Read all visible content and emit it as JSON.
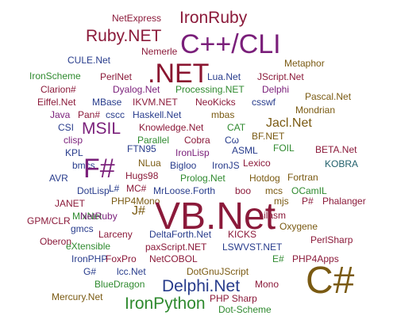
{
  "colors": {
    "purple": "#7a1f7a",
    "maroon": "#8b1a3a",
    "navy": "#283c8c",
    "olive": "#7a5a12",
    "green": "#2f8a2f",
    "teal": "#1f5f6a",
    "crimson": "#8a1530"
  },
  "words": [
    {
      "text": "NetExpress",
      "weight": 2,
      "color": "maroon"
    },
    {
      "text": "IronRuby",
      "weight": 4,
      "color": "maroon"
    },
    {
      "text": "Ruby.NET",
      "weight": 4,
      "color": "maroon"
    },
    {
      "text": "C++/CLI",
      "weight": 6,
      "color": "purple"
    },
    {
      "text": "Nemerle",
      "weight": 2,
      "color": "maroon"
    },
    {
      "text": "CULE.Net",
      "weight": 2,
      "color": "navy"
    },
    {
      "text": ".NET",
      "weight": 6,
      "color": "crimson"
    },
    {
      "text": "Metaphor",
      "weight": 2,
      "color": "olive"
    },
    {
      "text": "IronScheme",
      "weight": 2,
      "color": "green"
    },
    {
      "text": "PerlNet",
      "weight": 2,
      "color": "maroon"
    },
    {
      "text": "Lua.Net",
      "weight": 2,
      "color": "navy"
    },
    {
      "text": "JScript.Net",
      "weight": 2,
      "color": "maroon"
    },
    {
      "text": "Clarion#",
      "weight": 2,
      "color": "maroon"
    },
    {
      "text": "Dyalog.Net",
      "weight": 2,
      "color": "purple"
    },
    {
      "text": "Processing.NET",
      "weight": 2,
      "color": "green"
    },
    {
      "text": "Delphi",
      "weight": 2,
      "color": "purple"
    },
    {
      "text": "Pascal.Net",
      "weight": 2,
      "color": "olive"
    },
    {
      "text": "Eiffel.Net",
      "weight": 2,
      "color": "maroon"
    },
    {
      "text": "MBase",
      "weight": 2,
      "color": "navy"
    },
    {
      "text": "IKVM.NET",
      "weight": 2,
      "color": "maroon"
    },
    {
      "text": "NeoKicks",
      "weight": 2,
      "color": "maroon"
    },
    {
      "text": "csswf",
      "weight": 2,
      "color": "navy"
    },
    {
      "text": "Mondrian",
      "weight": 2,
      "color": "olive"
    },
    {
      "text": "Java",
      "weight": 2,
      "color": "purple"
    },
    {
      "text": "Pan#",
      "weight": 2,
      "color": "maroon"
    },
    {
      "text": "cscc",
      "weight": 2,
      "color": "navy"
    },
    {
      "text": "Haskell.Net",
      "weight": 2,
      "color": "navy"
    },
    {
      "text": "mbas",
      "weight": 2,
      "color": "olive"
    },
    {
      "text": "CSI",
      "weight": 2,
      "color": "navy"
    },
    {
      "text": "MSIL",
      "weight": 4,
      "color": "purple"
    },
    {
      "text": "Knowledge.Net",
      "weight": 2,
      "color": "maroon"
    },
    {
      "text": "CAT",
      "weight": 2,
      "color": "green"
    },
    {
      "text": "Jacl.Net",
      "weight": 3,
      "color": "olive"
    },
    {
      "text": "clisp",
      "weight": 2,
      "color": "purple"
    },
    {
      "text": "Parallel",
      "weight": 2,
      "color": "green"
    },
    {
      "text": "Cobra",
      "weight": 2,
      "color": "maroon"
    },
    {
      "text": "Cω",
      "weight": 2,
      "color": "navy"
    },
    {
      "text": "BF.NET",
      "weight": 2,
      "color": "olive"
    },
    {
      "text": "KPL",
      "weight": 2,
      "color": "navy"
    },
    {
      "text": "FTN95",
      "weight": 2,
      "color": "navy"
    },
    {
      "text": "IronLisp",
      "weight": 2,
      "color": "purple"
    },
    {
      "text": "ASML",
      "weight": 2,
      "color": "navy"
    },
    {
      "text": "FOIL",
      "weight": 2,
      "color": "green"
    },
    {
      "text": "BETA.Net",
      "weight": 2,
      "color": "maroon"
    },
    {
      "text": "bmcs",
      "weight": 2,
      "color": "navy"
    },
    {
      "text": "F#",
      "weight": 5,
      "color": "purple"
    },
    {
      "text": "NLua",
      "weight": 2,
      "color": "olive"
    },
    {
      "text": "Bigloo",
      "weight": 2,
      "color": "navy"
    },
    {
      "text": "IronJS",
      "weight": 2,
      "color": "navy"
    },
    {
      "text": "Lexico",
      "weight": 2,
      "color": "maroon"
    },
    {
      "text": "KOBRA",
      "weight": 2,
      "color": "teal"
    },
    {
      "text": "AVR",
      "weight": 2,
      "color": "navy"
    },
    {
      "text": "Hugs98",
      "weight": 2,
      "color": "maroon"
    },
    {
      "text": "Prolog.Net",
      "weight": 2,
      "color": "green"
    },
    {
      "text": "Hotdog",
      "weight": 2,
      "color": "olive"
    },
    {
      "text": "Fortran",
      "weight": 2,
      "color": "olive"
    },
    {
      "text": "DotLisp",
      "weight": 2,
      "color": "navy"
    },
    {
      "text": "L#",
      "weight": 2,
      "color": "navy"
    },
    {
      "text": "MC#",
      "weight": 2,
      "color": "maroon"
    },
    {
      "text": "MrLoose.Forth",
      "weight": 2,
      "color": "navy"
    },
    {
      "text": "boo",
      "weight": 2,
      "color": "maroon"
    },
    {
      "text": "mcs",
      "weight": 2,
      "color": "olive"
    },
    {
      "text": "OCamIL",
      "weight": 2,
      "color": "green"
    },
    {
      "text": "JANET",
      "weight": 2,
      "color": "maroon"
    },
    {
      "text": "PHP4Mono",
      "weight": 2,
      "color": "olive"
    },
    {
      "text": "mjs",
      "weight": 2,
      "color": "olive"
    },
    {
      "text": "P#",
      "weight": 2,
      "color": "maroon"
    },
    {
      "text": "Phalanger",
      "weight": 2,
      "color": "maroon"
    },
    {
      "text": "MixNet",
      "weight": 2,
      "color": "green"
    },
    {
      "text": "VB.Net",
      "weight": 7,
      "color": "maroon"
    },
    {
      "text": "GPM/CLR",
      "weight": 2,
      "color": "maroon"
    },
    {
      "text": "NetRuby",
      "weight": 2,
      "color": "purple"
    },
    {
      "text": "J#",
      "weight": 3,
      "color": "olive"
    },
    {
      "text": "ilasm",
      "weight": 2,
      "color": "maroon"
    },
    {
      "text": "gmcs",
      "weight": 2,
      "color": "navy"
    },
    {
      "text": "Oxygene",
      "weight": 2,
      "color": "olive"
    },
    {
      "text": "Oberon",
      "weight": 2,
      "color": "maroon"
    },
    {
      "text": "Larceny",
      "weight": 2,
      "color": "maroon"
    },
    {
      "text": "DeltaForth.Net",
      "weight": 2,
      "color": "navy"
    },
    {
      "text": "KICKS",
      "weight": 2,
      "color": "maroon"
    },
    {
      "text": "PerlSharp",
      "weight": 2,
      "color": "maroon"
    },
    {
      "text": "eXtensible",
      "weight": 2,
      "color": "green"
    },
    {
      "text": "paxScript.NET",
      "weight": 2,
      "color": "maroon"
    },
    {
      "text": "LSWVST.NET",
      "weight": 2,
      "color": "navy"
    },
    {
      "text": "IronPHP",
      "weight": 2,
      "color": "navy"
    },
    {
      "text": "FoxPro",
      "weight": 2,
      "color": "maroon"
    },
    {
      "text": "NetCOBOL",
      "weight": 2,
      "color": "maroon"
    },
    {
      "text": "E#",
      "weight": 2,
      "color": "green"
    },
    {
      "text": "PHP4Apps",
      "weight": 2,
      "color": "maroon"
    },
    {
      "text": "G#",
      "weight": 2,
      "color": "navy"
    },
    {
      "text": "lcc.Net",
      "weight": 2,
      "color": "navy"
    },
    {
      "text": "DotGnuJScript",
      "weight": 2,
      "color": "olive"
    },
    {
      "text": "C#",
      "weight": 7,
      "color": "olive"
    },
    {
      "text": "BlueDragon",
      "weight": 2,
      "color": "green"
    },
    {
      "text": "Delphi.Net",
      "weight": 4,
      "color": "navy"
    },
    {
      "text": "Mono",
      "weight": 2,
      "color": "maroon"
    },
    {
      "text": "Mercury.Net",
      "weight": 2,
      "color": "olive"
    },
    {
      "text": "IronPython",
      "weight": 4,
      "color": "green"
    },
    {
      "text": "PHP Sharp",
      "weight": 2,
      "color": "maroon"
    },
    {
      "text": "Dot-Scheme",
      "weight": 2,
      "color": "green"
    }
  ]
}
